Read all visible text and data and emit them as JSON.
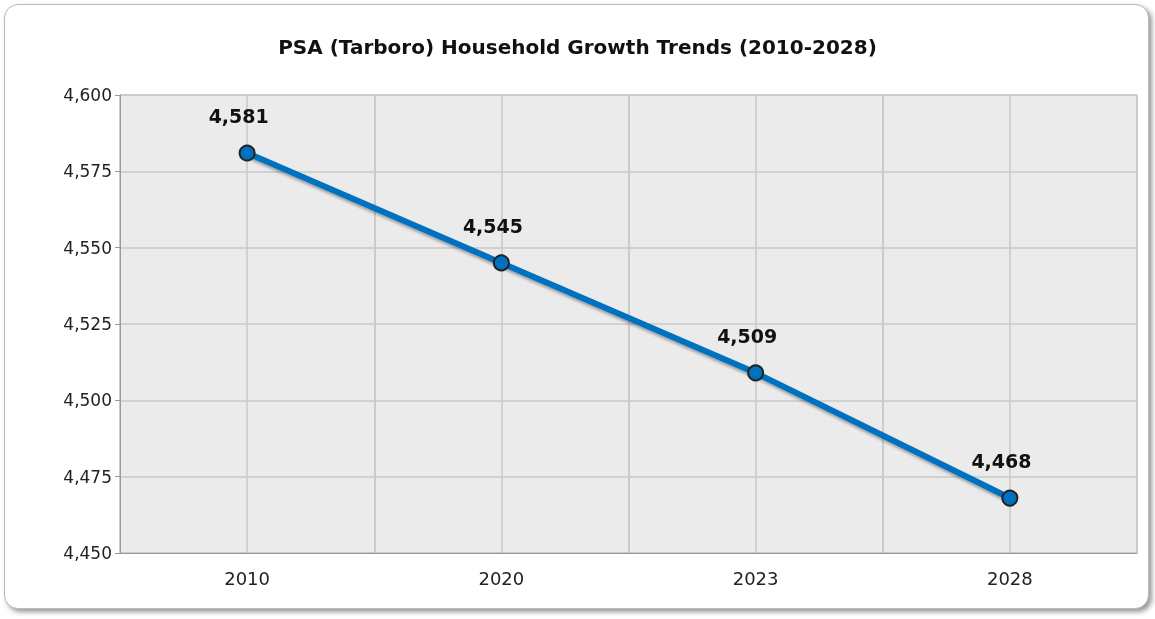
{
  "chart_data": {
    "type": "line",
    "title": "PSA (Tarboro) Household Growth Trends (2010-2028)",
    "categories": [
      "2010",
      "2020",
      "2023",
      "2028"
    ],
    "series": [
      {
        "color": "#0070c0",
        "values": [
          4581,
          4545,
          4509,
          4468
        ],
        "value_labels": [
          "4,581",
          "4,545",
          "4,509",
          "4,468"
        ]
      }
    ],
    "ylim": [
      4450,
      4600
    ],
    "yticks": [
      {
        "value": 4450,
        "label": "4,450"
      },
      {
        "value": 4475,
        "label": "4,475"
      },
      {
        "value": 4500,
        "label": "4,500"
      },
      {
        "value": 4525,
        "label": "4,525"
      },
      {
        "value": 4550,
        "label": "4,550"
      },
      {
        "value": 4575,
        "label": "4,575"
      },
      {
        "value": 4600,
        "label": "4,600"
      }
    ],
    "grid": true,
    "marker": "circle",
    "line_style": "solid"
  }
}
